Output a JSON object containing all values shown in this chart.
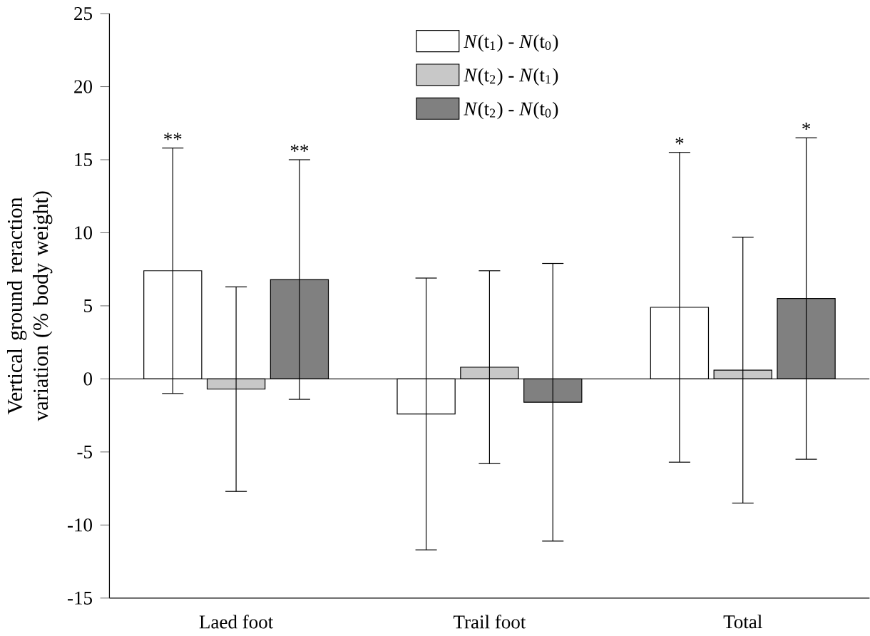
{
  "chart_data": {
    "type": "bar",
    "ylabel": "Vertical ground reraction variation (% body weight)",
    "categories": [
      "Laed foot",
      "Trail foot",
      "Total"
    ],
    "series": [
      {
        "name": "*N*(t$_{1}$) - *N*(t$_{0}$)",
        "color": "#ffffff",
        "values": [
          7.4,
          -2.4,
          4.9
        ],
        "errors": [
          8.4,
          9.3,
          10.6
        ]
      },
      {
        "name": "*N*(t$_{2}$) - *N*(t$_{1}$)",
        "color": "#c8c8c8",
        "values": [
          -0.7,
          0.8,
          0.6
        ],
        "errors": [
          7.0,
          6.6,
          9.1
        ]
      },
      {
        "name": "*N*(t$_{2}$) - *N*(t$_{0}$)",
        "color": "#808080",
        "values": [
          6.8,
          -1.6,
          5.5
        ],
        "errors": [
          8.2,
          9.5,
          11.0
        ]
      }
    ],
    "annotations": [
      "**",
      "**",
      "*",
      "*"
    ],
    "ylim": [
      -15,
      25
    ],
    "yticks": [
      -15,
      -10,
      -5,
      0,
      5,
      10,
      15,
      20,
      25
    ],
    "ref_lines": [
      {
        "axis": "y",
        "value": 0
      }
    ],
    "legend": "top",
    "grid": false
  }
}
